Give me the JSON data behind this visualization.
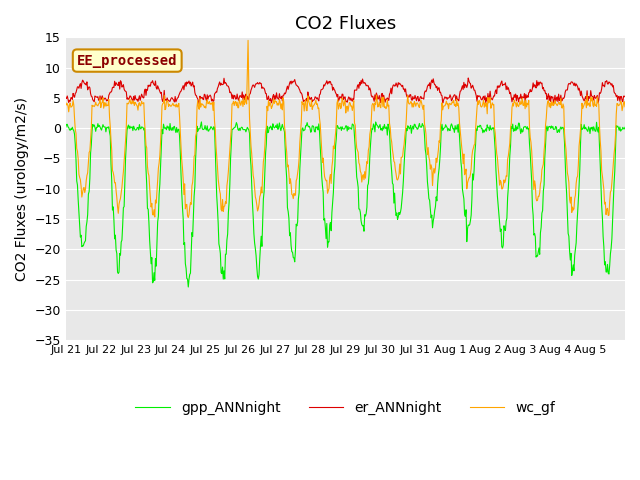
{
  "title": "CO2 Fluxes",
  "ylabel": "CO2 Fluxes (urology/m2/s)",
  "ylim": [
    -35,
    15
  ],
  "yticks": [
    -35,
    -30,
    -25,
    -20,
    -15,
    -10,
    -5,
    0,
    5,
    10,
    15
  ],
  "xlim": [
    0,
    16
  ],
  "n_days": 16,
  "n_per_day": 48,
  "seed": 42,
  "color_gpp": "#00ee00",
  "color_er": "#dd0000",
  "color_wc": "#ffa500",
  "label_gpp": "gpp_ANNnight",
  "label_er": "er_ANNnight",
  "label_wc": "wc_gf",
  "annotation_text": "EE_processed",
  "annotation_facecolor": "#ffffcc",
  "annotation_edgecolor": "#cc8800",
  "annotation_textcolor": "#8b0000",
  "bg_color": "#e8e8e8",
  "grid_color": "#ffffff",
  "title_fontsize": 13,
  "ylabel_fontsize": 10,
  "tick_fontsize_x": 8,
  "tick_fontsize_y": 9,
  "legend_fontsize": 10,
  "line_width": 0.8,
  "tick_labels": [
    "Jul 21",
    "Jul 22",
    "Jul 23",
    "Jul 24",
    "Jul 25",
    "Jul 26",
    "Jul 27",
    "Jul 28",
    "Jul 29",
    "Jul 30",
    "Jul 31",
    "Aug 1",
    "Aug 2",
    "Aug 3",
    "Aug 4",
    "Aug 5"
  ],
  "tick_positions": [
    0,
    1,
    2,
    3,
    4,
    5,
    6,
    7,
    8,
    9,
    10,
    11,
    12,
    13,
    14,
    15
  ]
}
